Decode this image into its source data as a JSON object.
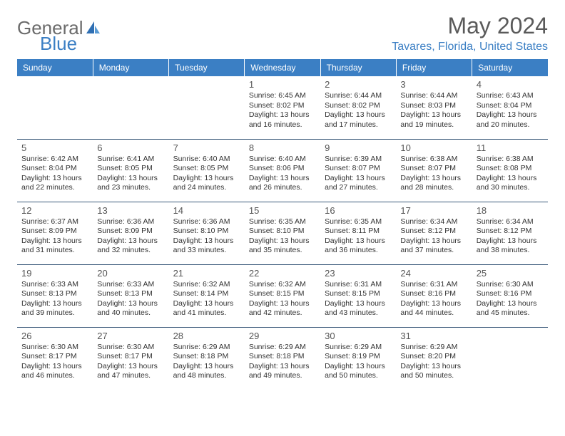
{
  "logo": {
    "text1": "General",
    "text2": "Blue"
  },
  "title": "May 2024",
  "location": "Tavares, Florida, United States",
  "colors": {
    "header_bg": "#3b7fc4",
    "header_text": "#ffffff",
    "cell_border": "#3b5a7a",
    "title_color": "#5a5a5a",
    "location_color": "#3b7fc4",
    "logo_gray": "#6b6b6b",
    "logo_blue": "#3b7fc4",
    "text_color": "#333333"
  },
  "weekdays": [
    "Sunday",
    "Monday",
    "Tuesday",
    "Wednesday",
    "Thursday",
    "Friday",
    "Saturday"
  ],
  "weeks": [
    [
      null,
      null,
      null,
      {
        "day": "1",
        "sunrise": "Sunrise: 6:45 AM",
        "sunset": "Sunset: 8:02 PM",
        "daylight": "Daylight: 13 hours and 16 minutes."
      },
      {
        "day": "2",
        "sunrise": "Sunrise: 6:44 AM",
        "sunset": "Sunset: 8:02 PM",
        "daylight": "Daylight: 13 hours and 17 minutes."
      },
      {
        "day": "3",
        "sunrise": "Sunrise: 6:44 AM",
        "sunset": "Sunset: 8:03 PM",
        "daylight": "Daylight: 13 hours and 19 minutes."
      },
      {
        "day": "4",
        "sunrise": "Sunrise: 6:43 AM",
        "sunset": "Sunset: 8:04 PM",
        "daylight": "Daylight: 13 hours and 20 minutes."
      }
    ],
    [
      {
        "day": "5",
        "sunrise": "Sunrise: 6:42 AM",
        "sunset": "Sunset: 8:04 PM",
        "daylight": "Daylight: 13 hours and 22 minutes."
      },
      {
        "day": "6",
        "sunrise": "Sunrise: 6:41 AM",
        "sunset": "Sunset: 8:05 PM",
        "daylight": "Daylight: 13 hours and 23 minutes."
      },
      {
        "day": "7",
        "sunrise": "Sunrise: 6:40 AM",
        "sunset": "Sunset: 8:05 PM",
        "daylight": "Daylight: 13 hours and 24 minutes."
      },
      {
        "day": "8",
        "sunrise": "Sunrise: 6:40 AM",
        "sunset": "Sunset: 8:06 PM",
        "daylight": "Daylight: 13 hours and 26 minutes."
      },
      {
        "day": "9",
        "sunrise": "Sunrise: 6:39 AM",
        "sunset": "Sunset: 8:07 PM",
        "daylight": "Daylight: 13 hours and 27 minutes."
      },
      {
        "day": "10",
        "sunrise": "Sunrise: 6:38 AM",
        "sunset": "Sunset: 8:07 PM",
        "daylight": "Daylight: 13 hours and 28 minutes."
      },
      {
        "day": "11",
        "sunrise": "Sunrise: 6:38 AM",
        "sunset": "Sunset: 8:08 PM",
        "daylight": "Daylight: 13 hours and 30 minutes."
      }
    ],
    [
      {
        "day": "12",
        "sunrise": "Sunrise: 6:37 AM",
        "sunset": "Sunset: 8:09 PM",
        "daylight": "Daylight: 13 hours and 31 minutes."
      },
      {
        "day": "13",
        "sunrise": "Sunrise: 6:36 AM",
        "sunset": "Sunset: 8:09 PM",
        "daylight": "Daylight: 13 hours and 32 minutes."
      },
      {
        "day": "14",
        "sunrise": "Sunrise: 6:36 AM",
        "sunset": "Sunset: 8:10 PM",
        "daylight": "Daylight: 13 hours and 33 minutes."
      },
      {
        "day": "15",
        "sunrise": "Sunrise: 6:35 AM",
        "sunset": "Sunset: 8:10 PM",
        "daylight": "Daylight: 13 hours and 35 minutes."
      },
      {
        "day": "16",
        "sunrise": "Sunrise: 6:35 AM",
        "sunset": "Sunset: 8:11 PM",
        "daylight": "Daylight: 13 hours and 36 minutes."
      },
      {
        "day": "17",
        "sunrise": "Sunrise: 6:34 AM",
        "sunset": "Sunset: 8:12 PM",
        "daylight": "Daylight: 13 hours and 37 minutes."
      },
      {
        "day": "18",
        "sunrise": "Sunrise: 6:34 AM",
        "sunset": "Sunset: 8:12 PM",
        "daylight": "Daylight: 13 hours and 38 minutes."
      }
    ],
    [
      {
        "day": "19",
        "sunrise": "Sunrise: 6:33 AM",
        "sunset": "Sunset: 8:13 PM",
        "daylight": "Daylight: 13 hours and 39 minutes."
      },
      {
        "day": "20",
        "sunrise": "Sunrise: 6:33 AM",
        "sunset": "Sunset: 8:13 PM",
        "daylight": "Daylight: 13 hours and 40 minutes."
      },
      {
        "day": "21",
        "sunrise": "Sunrise: 6:32 AM",
        "sunset": "Sunset: 8:14 PM",
        "daylight": "Daylight: 13 hours and 41 minutes."
      },
      {
        "day": "22",
        "sunrise": "Sunrise: 6:32 AM",
        "sunset": "Sunset: 8:15 PM",
        "daylight": "Daylight: 13 hours and 42 minutes."
      },
      {
        "day": "23",
        "sunrise": "Sunrise: 6:31 AM",
        "sunset": "Sunset: 8:15 PM",
        "daylight": "Daylight: 13 hours and 43 minutes."
      },
      {
        "day": "24",
        "sunrise": "Sunrise: 6:31 AM",
        "sunset": "Sunset: 8:16 PM",
        "daylight": "Daylight: 13 hours and 44 minutes."
      },
      {
        "day": "25",
        "sunrise": "Sunrise: 6:30 AM",
        "sunset": "Sunset: 8:16 PM",
        "daylight": "Daylight: 13 hours and 45 minutes."
      }
    ],
    [
      {
        "day": "26",
        "sunrise": "Sunrise: 6:30 AM",
        "sunset": "Sunset: 8:17 PM",
        "daylight": "Daylight: 13 hours and 46 minutes."
      },
      {
        "day": "27",
        "sunrise": "Sunrise: 6:30 AM",
        "sunset": "Sunset: 8:17 PM",
        "daylight": "Daylight: 13 hours and 47 minutes."
      },
      {
        "day": "28",
        "sunrise": "Sunrise: 6:29 AM",
        "sunset": "Sunset: 8:18 PM",
        "daylight": "Daylight: 13 hours and 48 minutes."
      },
      {
        "day": "29",
        "sunrise": "Sunrise: 6:29 AM",
        "sunset": "Sunset: 8:18 PM",
        "daylight": "Daylight: 13 hours and 49 minutes."
      },
      {
        "day": "30",
        "sunrise": "Sunrise: 6:29 AM",
        "sunset": "Sunset: 8:19 PM",
        "daylight": "Daylight: 13 hours and 50 minutes."
      },
      {
        "day": "31",
        "sunrise": "Sunrise: 6:29 AM",
        "sunset": "Sunset: 8:20 PM",
        "daylight": "Daylight: 13 hours and 50 minutes."
      },
      null
    ]
  ]
}
